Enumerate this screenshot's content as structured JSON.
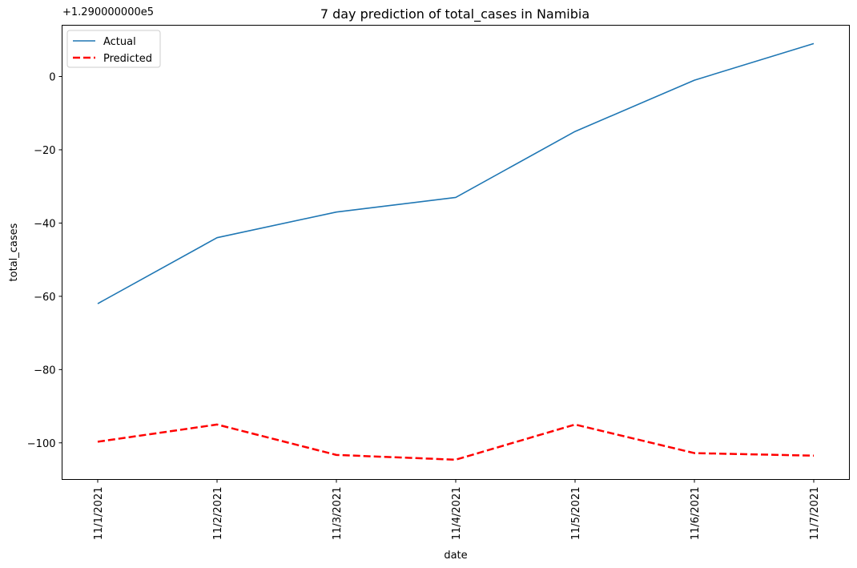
{
  "chart_data": {
    "type": "line",
    "title": "7 day prediction of total_cases in Namibia",
    "xlabel": "date",
    "ylabel": "total_cases",
    "offset_text": "+1.290000000e5",
    "categories": [
      "11/1/2021",
      "11/2/2021",
      "11/3/2021",
      "11/4/2021",
      "11/5/2021",
      "11/6/2021",
      "11/7/2021"
    ],
    "ylim": [
      -110,
      14
    ],
    "yticks": [
      0,
      -20,
      -40,
      -60,
      -80,
      -100
    ],
    "ytick_labels": [
      "0",
      "−20",
      "−40",
      "−60",
      "−80",
      "−100"
    ],
    "grid": false,
    "legend_position": "top-left",
    "series": [
      {
        "name": "Actual",
        "color": "#1f77b4",
        "style": "solid",
        "values": [
          -62,
          -44,
          -37,
          -33,
          -15,
          -1,
          9
        ]
      },
      {
        "name": "Predicted",
        "color": "#ff0000",
        "style": "dashed",
        "values": [
          -99.7,
          -95,
          -103.3,
          -104.6,
          -95,
          -102.8,
          -103.5
        ]
      }
    ]
  }
}
